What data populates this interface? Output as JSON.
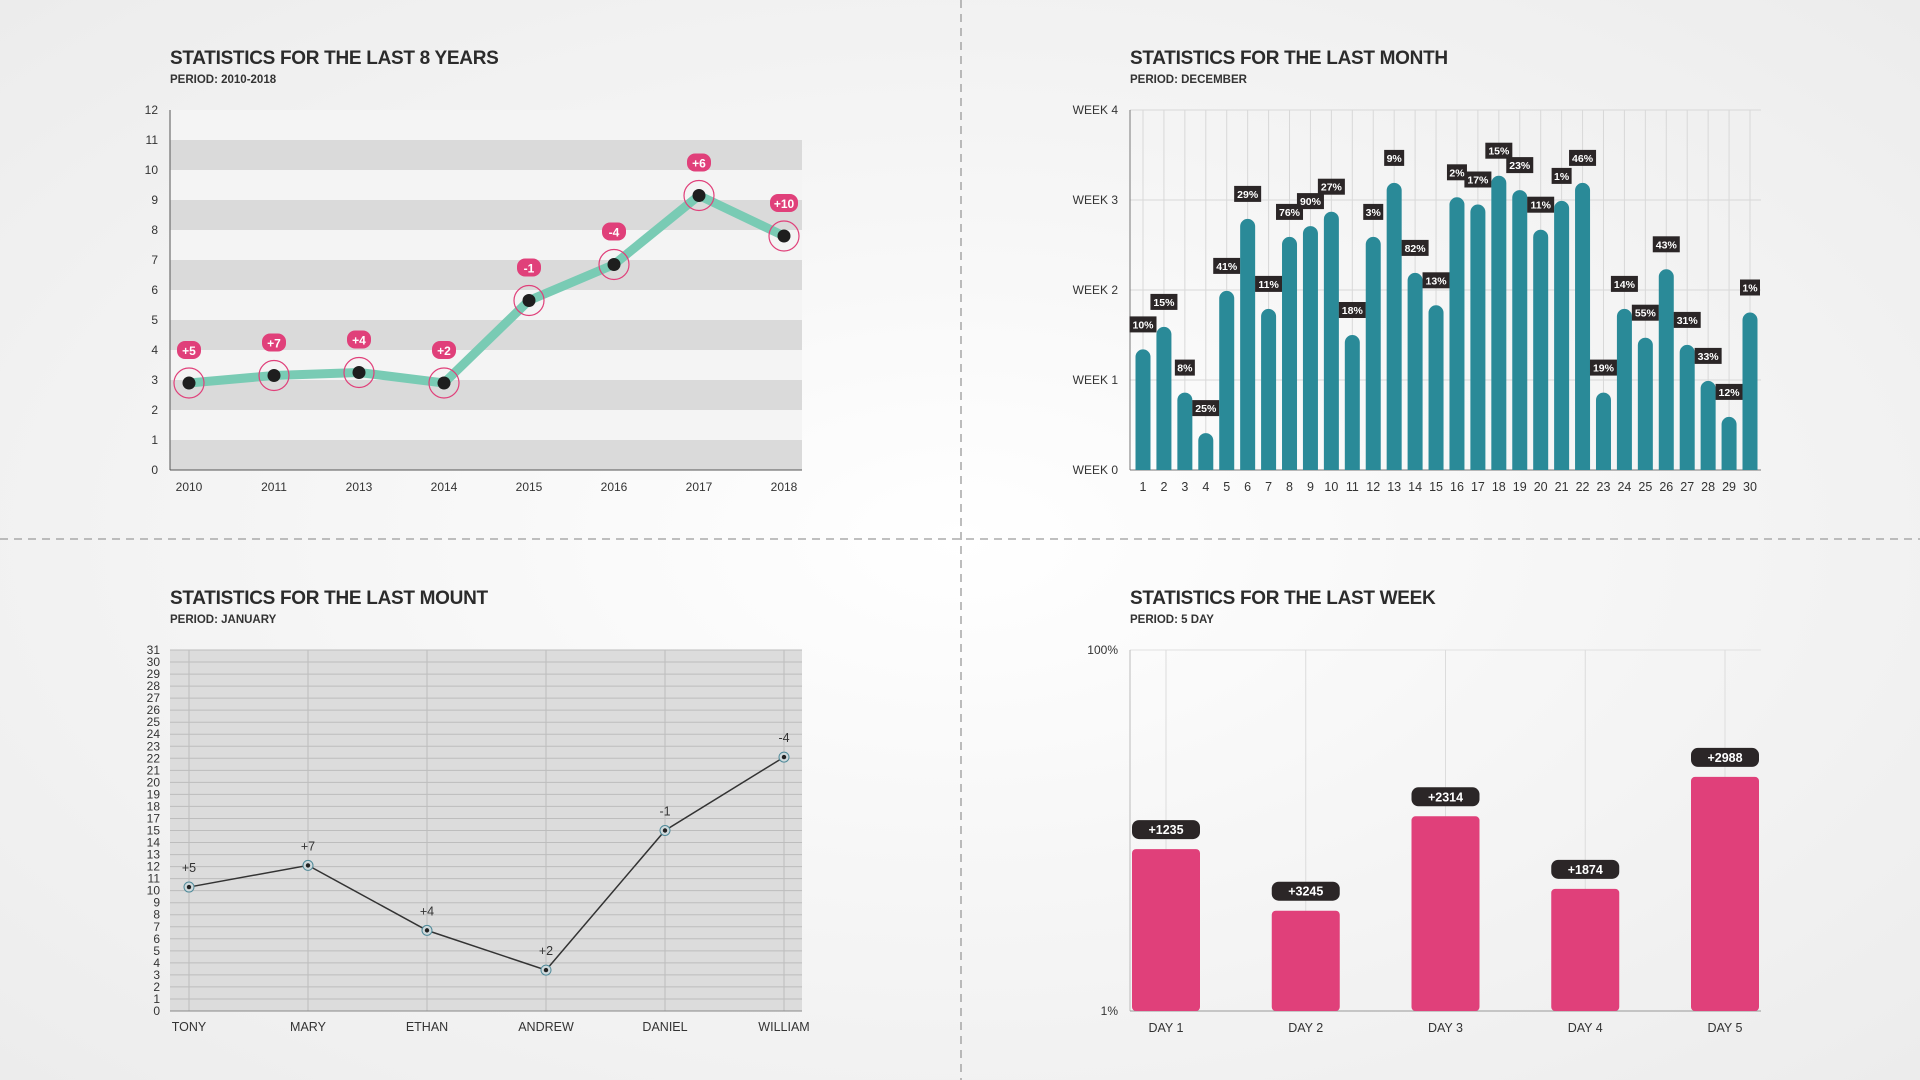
{
  "colors": {
    "teal_line": "#79cbb4",
    "pink": "#e0407a",
    "bar_teal": "#2a8a98",
    "label_dark": "#2b2627",
    "band": "#dadada"
  },
  "chart_data": [
    {
      "type": "line",
      "title": "STATISTICS FOR THE LAST 8 YEARS",
      "subtitle": "PERIOD: 2010-2018",
      "categories": [
        "2010",
        "2011",
        "2013",
        "2014",
        "2015",
        "2016",
        "2017",
        "2018"
      ],
      "values": [
        2.9,
        3.15,
        3.25,
        2.9,
        5.65,
        6.85,
        9.15,
        7.8
      ],
      "point_labels": [
        "+5",
        "+7",
        "+4",
        "+2",
        "-1",
        "-4",
        "+6",
        "+10"
      ],
      "yticks": [
        "0",
        "1",
        "2",
        "3",
        "4",
        "5",
        "6",
        "7",
        "8",
        "9",
        "10",
        "11",
        "12"
      ],
      "ylim": [
        0,
        12
      ],
      "grid": "alternating bands"
    },
    {
      "type": "bar",
      "title": "STATISTICS FOR THE LAST MONTH",
      "subtitle": "PERIOD: DECEMBER",
      "categories": [
        "1",
        "2",
        "3",
        "4",
        "5",
        "6",
        "7",
        "8",
        "9",
        "10",
        "11",
        "12",
        "13",
        "14",
        "15",
        "16",
        "17",
        "18",
        "19",
        "20",
        "21",
        "22",
        "23",
        "24",
        "25",
        "26",
        "27",
        "28",
        "29",
        "30"
      ],
      "values": [
        1.34,
        1.59,
        0.86,
        0.41,
        1.99,
        2.79,
        1.79,
        2.59,
        2.71,
        2.87,
        1.5,
        2.59,
        3.19,
        2.19,
        1.83,
        3.03,
        2.95,
        3.27,
        3.11,
        2.67,
        2.99,
        3.19,
        0.86,
        1.79,
        1.47,
        2.23,
        1.39,
        0.99,
        0.59,
        1.75
      ],
      "data_labels": [
        "10%",
        "15%",
        "8%",
        "25%",
        "41%",
        "29%",
        "11%",
        "76%",
        "90%",
        "27%",
        "18%",
        "3%",
        "9%",
        "82%",
        "13%",
        "2%",
        "17%",
        "15%",
        "23%",
        "11%",
        "1%",
        "46%",
        "19%",
        "14%",
        "55%",
        "43%",
        "31%",
        "33%",
        "12%",
        "1%"
      ],
      "yticks": [
        "WEEK 0",
        "WEEK 1",
        "WEEK 2",
        "WEEK 3",
        "WEEK 4"
      ],
      "ylim": [
        0,
        4
      ],
      "grid": true
    },
    {
      "type": "line",
      "title": "STATISTICS FOR THE LAST MOUNT",
      "subtitle": "PERIOD: JANUARY",
      "categories": [
        "TONY",
        "MARY",
        "ETHAN",
        "ANDREW",
        "DANIEL",
        "WILLIAM"
      ],
      "values": [
        10.3,
        12.1,
        6.7,
        3.4,
        15.1,
        22.1
      ],
      "point_labels": [
        "+5",
        "+7",
        "+4",
        "+2",
        "-1",
        "-4"
      ],
      "yticks": [
        "0",
        "1",
        "2",
        "3",
        "4",
        "5",
        "6",
        "7",
        "8",
        "9",
        "10",
        "11",
        "12",
        "13",
        "14",
        "15",
        "17",
        "18",
        "19",
        "20",
        "21",
        "22",
        "23",
        "24",
        "25",
        "26",
        "27",
        "28",
        "29",
        "30",
        "31"
      ],
      "ylim": [
        0,
        31
      ],
      "grid": true
    },
    {
      "type": "bar",
      "title": "STATISTICS FOR THE LAST WEEK",
      "subtitle": "PERIOD: 5 DAY",
      "categories": [
        "DAY 1",
        "DAY 2",
        "DAY 3",
        "DAY 4",
        "DAY 5"
      ],
      "values": [
        45.4,
        28.5,
        54.4,
        34.5,
        65.2
      ],
      "data_labels": [
        "+1235",
        "+3245",
        "+2314",
        "+1874",
        "+2988"
      ],
      "yticks": [
        "1%",
        "100%"
      ],
      "ylim": [
        1,
        100
      ],
      "grid": true
    }
  ]
}
